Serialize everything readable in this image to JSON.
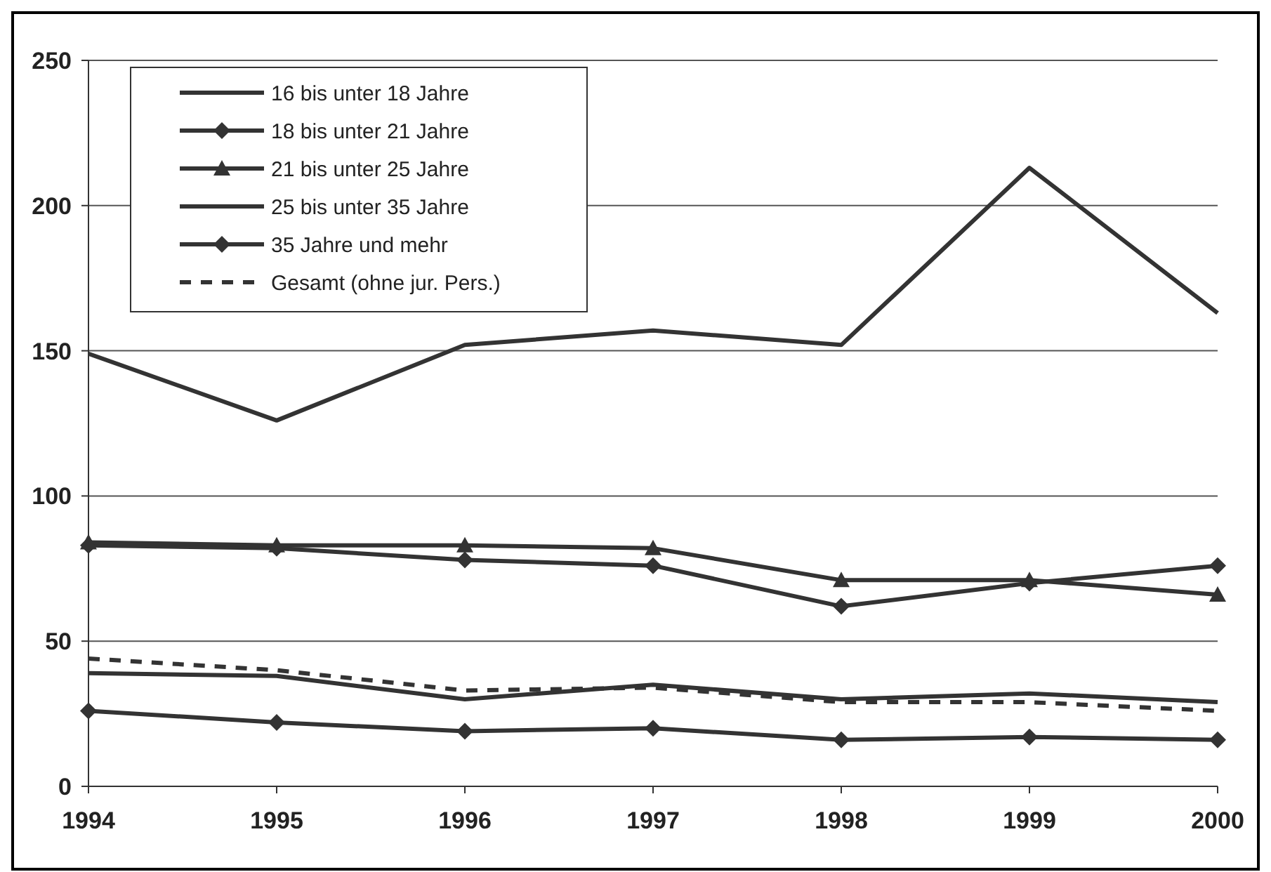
{
  "chart_data": {
    "type": "line",
    "x": [
      1994,
      1995,
      1996,
      1997,
      1998,
      1999,
      2000
    ],
    "xlim": [
      1994,
      2000
    ],
    "xticks": [
      1994,
      1995,
      1996,
      1997,
      1998,
      1999,
      2000
    ],
    "ylim": [
      0,
      250
    ],
    "yticks": [
      0,
      50,
      100,
      150,
      200,
      250
    ],
    "grid": "y",
    "legend": "top left",
    "series": [
      {
        "name": "16 bis unter 18 Jahre",
        "color": "#333333",
        "marker": "none",
        "line_style": "solid",
        "values": [
          149,
          126,
          152,
          157,
          152,
          213,
          163
        ]
      },
      {
        "name": "18 bis unter 21 Jahre",
        "color": "#333333",
        "marker": "diamond",
        "line_style": "solid",
        "values": [
          83,
          82,
          78,
          76,
          62,
          70,
          76
        ]
      },
      {
        "name": "21 bis unter 25 Jahre",
        "color": "#333333",
        "marker": "triangle",
        "line_style": "solid",
        "values": [
          84,
          83,
          83,
          82,
          71,
          71,
          66
        ]
      },
      {
        "name": "25 bis unter 35 Jahre",
        "color": "#333333",
        "marker": "none",
        "line_style": "solid",
        "values": [
          39,
          38,
          30,
          35,
          30,
          32,
          29
        ]
      },
      {
        "name": "35 Jahre und mehr",
        "color": "#333333",
        "marker": "diamond",
        "line_style": "solid",
        "values": [
          26,
          22,
          19,
          20,
          16,
          17,
          16
        ]
      },
      {
        "name": "Gesamt (ohne jur. Pers.)",
        "color": "#333333",
        "marker": "none",
        "line_style": "dashed",
        "values": [
          44,
          40,
          33,
          34,
          29,
          29,
          26
        ]
      }
    ]
  }
}
